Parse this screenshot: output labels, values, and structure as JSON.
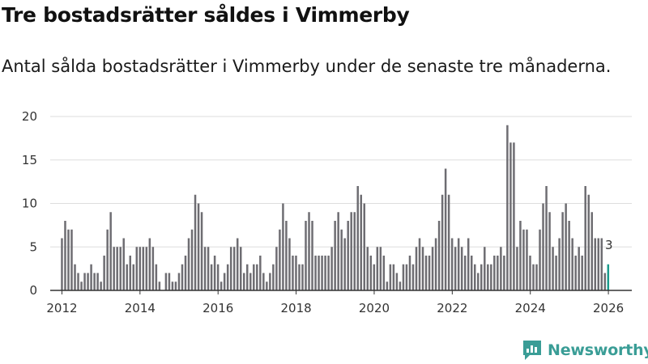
{
  "header": {
    "title": "Tre bostadsrätter såldes i Vimmerby",
    "subtitle": "Antal sålda bostadsrätter i Vimmerby under de senaste tre månaderna."
  },
  "branding": {
    "logo_text": "Newsworthy",
    "logo_icon": "newsworthy-chart-icon"
  },
  "colors": {
    "bar": "#6e6d72",
    "highlight": "#1a9a8c",
    "grid": "#dddddd",
    "axis": "#333333",
    "logo": "#3a9d96"
  },
  "chart_data": {
    "type": "bar",
    "title": "Tre bostadsrätter såldes i Vimmerby",
    "subtitle": "Antal sålda bostadsrätter i Vimmerby under de senaste tre månaderna.",
    "xlabel": "",
    "ylabel": "",
    "x_start": 2012.0,
    "x_step": 0.0833,
    "xlim": [
      2011.7,
      2026.6
    ],
    "ylim": [
      0,
      20
    ],
    "yticks": [
      0,
      5,
      10,
      15,
      20
    ],
    "xticks": [
      2012,
      2014,
      2016,
      2018,
      2020,
      2022,
      2024,
      2026
    ],
    "grid": true,
    "values": [
      6,
      8,
      7,
      7,
      3,
      2,
      1,
      2,
      2,
      3,
      2,
      2,
      1,
      4,
      7,
      9,
      5,
      5,
      5,
      6,
      3,
      4,
      3,
      5,
      5,
      5,
      5,
      6,
      5,
      3,
      1,
      0,
      2,
      2,
      1,
      1,
      2,
      3,
      4,
      6,
      7,
      11,
      10,
      9,
      5,
      5,
      3,
      4,
      3,
      1,
      2,
      3,
      5,
      5,
      6,
      5,
      2,
      3,
      2,
      3,
      3,
      4,
      2,
      1,
      2,
      3,
      5,
      7,
      10,
      8,
      6,
      4,
      4,
      3,
      3,
      8,
      9,
      8,
      4,
      4,
      4,
      4,
      4,
      5,
      8,
      9,
      7,
      6,
      8,
      9,
      9,
      12,
      11,
      10,
      5,
      4,
      3,
      5,
      5,
      4,
      1,
      3,
      3,
      2,
      1,
      3,
      3,
      4,
      3,
      5,
      6,
      5,
      4,
      4,
      5,
      6,
      8,
      11,
      14,
      11,
      6,
      5,
      6,
      5,
      4,
      6,
      4,
      3,
      2,
      3,
      5,
      3,
      3,
      4,
      4,
      5,
      4,
      19,
      17,
      17,
      5,
      8,
      7,
      7,
      4,
      3,
      3,
      7,
      10,
      12,
      9,
      5,
      4,
      6,
      9,
      10,
      8,
      6,
      4,
      5,
      4,
      12,
      11,
      9,
      6,
      6,
      6,
      2,
      3
    ],
    "highlight_index": 168,
    "annotations": [
      {
        "index": 168,
        "text": "3"
      }
    ]
  }
}
